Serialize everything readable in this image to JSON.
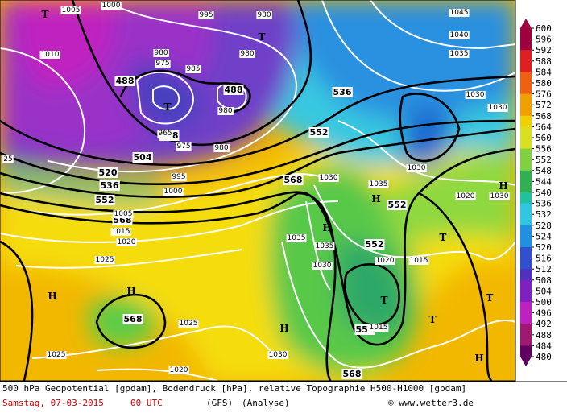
{
  "legend": {
    "levels": [
      600,
      596,
      592,
      588,
      584,
      580,
      576,
      572,
      568,
      564,
      560,
      556,
      552,
      548,
      544,
      540,
      536,
      532,
      528,
      524,
      520,
      516,
      512,
      508,
      504,
      500,
      496,
      492,
      488,
      484,
      480
    ]
  },
  "map": {
    "geopotential_labels": [
      "488",
      "488",
      "488",
      "504",
      "520",
      "536",
      "552",
      "568",
      "536",
      "552",
      "568",
      "552",
      "552",
      "552",
      "568",
      "568"
    ],
    "pressure_labels": [
      "1005",
      "1000",
      "1010",
      "980",
      "975",
      "985",
      "980",
      "980",
      "995",
      "1045",
      "1040",
      "1035",
      "1030",
      "1030",
      "1030",
      "1020",
      "1030",
      "1035",
      "1030",
      "1035",
      "1035",
      "1030",
      "1020",
      "1015",
      "1015",
      "1000",
      "995",
      "980",
      "975",
      "965",
      "980",
      "1005",
      "1015",
      "1020",
      "1025",
      "1025",
      "1025",
      "1020",
      "1030",
      "25"
    ],
    "markers": [
      "T",
      "T",
      "T",
      "T",
      "T",
      "T",
      "T",
      "H",
      "H",
      "H",
      "H",
      "H",
      "H",
      "H"
    ]
  },
  "caption": {
    "line1": "500 hPa Geopotential [gpdam], Bodendruck [hPa], relative Topographie H500-H1000 [gpdam]",
    "date": "Samstag, 07-03-2015",
    "time": "00 UTC",
    "model": "(GFS)",
    "analysis": "(Analyse)",
    "credit": "© www.wetter3.de"
  }
}
